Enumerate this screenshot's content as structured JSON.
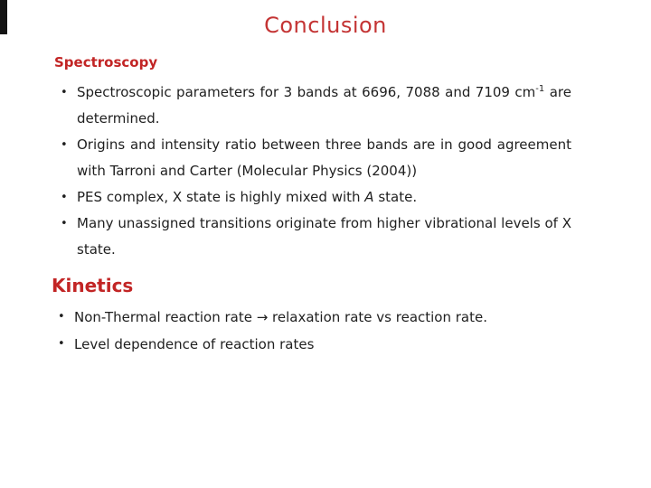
{
  "slide": {
    "title": "Conclusion",
    "bullet_glyph": "•",
    "colors": {
      "title_red": "#c43434",
      "heading_red": "#c22525",
      "body_text": "#1f1f1f",
      "corner_black": "#131313"
    },
    "sections": [
      {
        "heading": "Spectroscopy",
        "justify": true,
        "bullets": [
          {
            "segments": [
              {
                "text": "Spectroscopic parameters for 3 bands at 6696, 7088 and 7109 cm"
              },
              {
                "text": "-1",
                "style": "sup"
              },
              {
                "text": " are determined."
              }
            ]
          },
          {
            "segments": [
              {
                "text": "Origins and intensity ratio between three bands are in good agreement with Tarroni and Carter (Molecular Physics (2004))"
              }
            ]
          },
          {
            "segments": [
              {
                "text": "PES complex, X state is highly mixed with "
              },
              {
                "text": "A",
                "style": "italic"
              },
              {
                "text": " state."
              }
            ]
          },
          {
            "segments": [
              {
                "text": "Many unassigned transitions originate from higher vibrational levels of X state."
              }
            ]
          }
        ]
      },
      {
        "heading": "Kinetics",
        "justify": false,
        "bullets": [
          {
            "segments": [
              {
                "text": "Non-Thermal reaction rate → relaxation rate vs reaction rate."
              }
            ]
          },
          {
            "segments": [
              {
                "text": "Level dependence of reaction rates"
              }
            ]
          }
        ]
      }
    ]
  }
}
